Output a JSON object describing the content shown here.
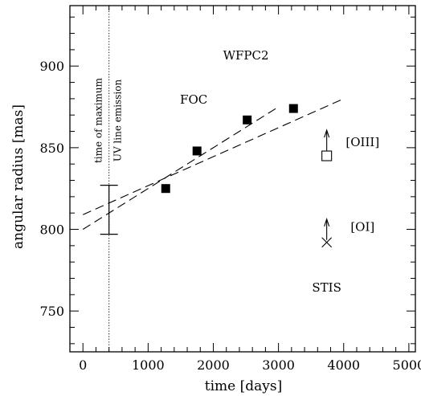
{
  "chart_data": {
    "type": "scatter",
    "xlabel": "time [days]",
    "ylabel": "angular radius [mas]",
    "xlim": [
      -200,
      5100
    ],
    "ylim": [
      725,
      937
    ],
    "xticks": [
      "0",
      "1000",
      "2000",
      "3000",
      "4000",
      "5000"
    ],
    "xtick_values": [
      0,
      1000,
      2000,
      3000,
      4000,
      5000
    ],
    "yticks": [
      "750",
      "800",
      "850",
      "900"
    ],
    "ytick_values": [
      750,
      800,
      850,
      900
    ],
    "grid": false,
    "series": [
      {
        "marker": "filled-square",
        "points": [
          {
            "x": 1270,
            "y": 825
          },
          {
            "x": 1750,
            "y": 848
          },
          {
            "x": 2520,
            "y": 867
          },
          {
            "x": 3230,
            "y": 874
          }
        ]
      }
    ],
    "upper_limits": [
      {
        "label": "[OIII]",
        "marker": "open-square-arrow-up",
        "x": 3740,
        "y": 845
      },
      {
        "label": "[OI]",
        "marker": "cross-arrow-up",
        "x": 3740,
        "y": 792
      }
    ],
    "fits": [
      {
        "style": "dashed",
        "x": [
          0,
          3000
        ],
        "y": [
          800,
          875
        ]
      },
      {
        "style": "dashed",
        "x": [
          0,
          4000
        ],
        "y": [
          809,
          880
        ]
      }
    ],
    "errorbar": {
      "x": 400,
      "y": 812,
      "ylow": 797,
      "yhigh": 827
    },
    "vertical_line": {
      "x": 400,
      "style": "dotted",
      "label_lines": [
        "time of maximum",
        "UV line emission"
      ]
    },
    "annotations": [
      {
        "text": "WFPC2",
        "x": 2500,
        "y": 904
      },
      {
        "text": "FOC",
        "x": 1700,
        "y": 877
      },
      {
        "text": "STIS",
        "x": 3740,
        "y": 762
      },
      {
        "text": "[OIII]",
        "x": 4290,
        "y": 851
      },
      {
        "text": "[OI]",
        "x": 4290,
        "y": 799
      }
    ]
  }
}
